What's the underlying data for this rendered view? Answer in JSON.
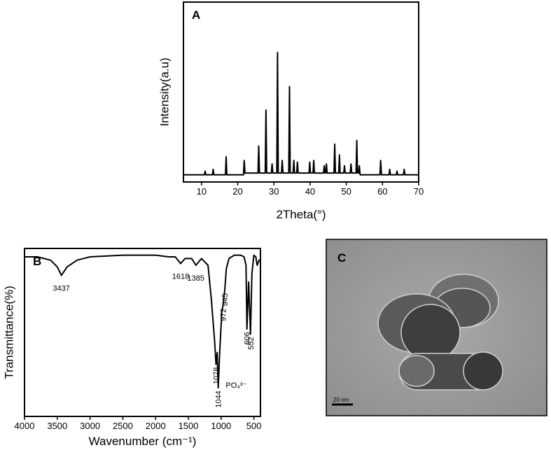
{
  "chart_data": [
    {
      "type": "line",
      "title": "A",
      "xlabel": "2Theta(°)",
      "ylabel": "Intensity(a.u)",
      "color": "#000000",
      "xlim": [
        5,
        70
      ],
      "xticks": [
        10,
        20,
        30,
        40,
        50,
        60,
        70
      ],
      "ylim": [
        0,
        100
      ],
      "x": [
        5,
        10.8,
        11,
        11.2,
        13,
        13.2,
        13.4,
        16.6,
        16.8,
        17,
        21.6,
        21.8,
        22,
        25.6,
        25.8,
        26,
        27.6,
        27.8,
        28,
        29.3,
        29.5,
        29.7,
        30.8,
        31,
        31.2,
        32.1,
        32.3,
        32.5,
        34.1,
        34.3,
        34.5,
        35.3,
        35.5,
        35.7,
        36.3,
        36.5,
        36.7,
        39.7,
        39.9,
        40.1,
        40.8,
        41,
        41.2,
        43.7,
        43.9,
        44.1,
        44.3,
        44.5,
        44.7,
        46.6,
        46.8,
        47,
        47.9,
        48.1,
        48.3,
        49.3,
        49.5,
        49.7,
        51.1,
        51.3,
        51.5,
        52.7,
        52.9,
        53.1,
        53.4,
        53.6,
        53.8,
        59.3,
        59.5,
        59.7,
        61.8,
        62,
        62.2,
        63.8,
        64,
        64.2,
        65.8,
        66,
        66.2,
        70
      ],
      "values": [
        4,
        4,
        6,
        4,
        4,
        7,
        4,
        4,
        14,
        4,
        4,
        12,
        5,
        5,
        20,
        5,
        5,
        40,
        5,
        5,
        10,
        5,
        5,
        72,
        5,
        5,
        12,
        5,
        5,
        53,
        5,
        5,
        12,
        5,
        5,
        11,
        5,
        5,
        11,
        5,
        5,
        12,
        5,
        5,
        9,
        5,
        5,
        10,
        5,
        5,
        21,
        5,
        5,
        15,
        5,
        5,
        9,
        5,
        5,
        10,
        5,
        5,
        23,
        5,
        5,
        9,
        4,
        4,
        12,
        4,
        4,
        7,
        4,
        4,
        6,
        4,
        4,
        7,
        4,
        4
      ]
    },
    {
      "type": "line",
      "title": "B",
      "xlabel": "Wavenumber (cm⁻¹)",
      "ylabel": "Transmittance(%)",
      "color": "#000000",
      "xlim": [
        4000,
        400
      ],
      "xticks": [
        4000,
        3500,
        3000,
        2500,
        2000,
        1500,
        1000,
        500
      ],
      "ylim": [
        0,
        100
      ],
      "x": [
        4000,
        3800,
        3600,
        3500,
        3437,
        3350,
        3200,
        3000,
        2500,
        2000,
        1800,
        1700,
        1618,
        1550,
        1450,
        1385,
        1300,
        1200,
        1150,
        1100,
        1078,
        1060,
        1044,
        1020,
        990,
        972,
        955,
        945,
        920,
        880,
        800,
        700,
        650,
        620,
        606,
        580,
        552,
        530,
        500,
        470,
        450,
        420,
        400
      ],
      "values": [
        95,
        95,
        93,
        89,
        84,
        89,
        93,
        95,
        96,
        96,
        95,
        95,
        91,
        94,
        94,
        90,
        94,
        90,
        70,
        45,
        31,
        38,
        17,
        40,
        62,
        66,
        72,
        75,
        88,
        94,
        96,
        96,
        95,
        90,
        52,
        80,
        49,
        85,
        96,
        95,
        90,
        93,
        93
      ],
      "annotations": [
        {
          "text": "3437",
          "x": 3437
        },
        {
          "text": "1618",
          "x": 1618
        },
        {
          "text": "1385",
          "x": 1385
        },
        {
          "text": "1078",
          "x": 1078
        },
        {
          "text": "1044",
          "x": 1044
        },
        {
          "text": "972",
          "x": 972
        },
        {
          "text": "945",
          "x": 945
        },
        {
          "text": "606",
          "x": 606
        },
        {
          "text": "552",
          "x": 552
        },
        {
          "text": "PO₄³⁻",
          "x": 930,
          "y": 17
        }
      ]
    }
  ],
  "image_panel": {
    "label": "C",
    "scale_bar": "20 nm"
  }
}
